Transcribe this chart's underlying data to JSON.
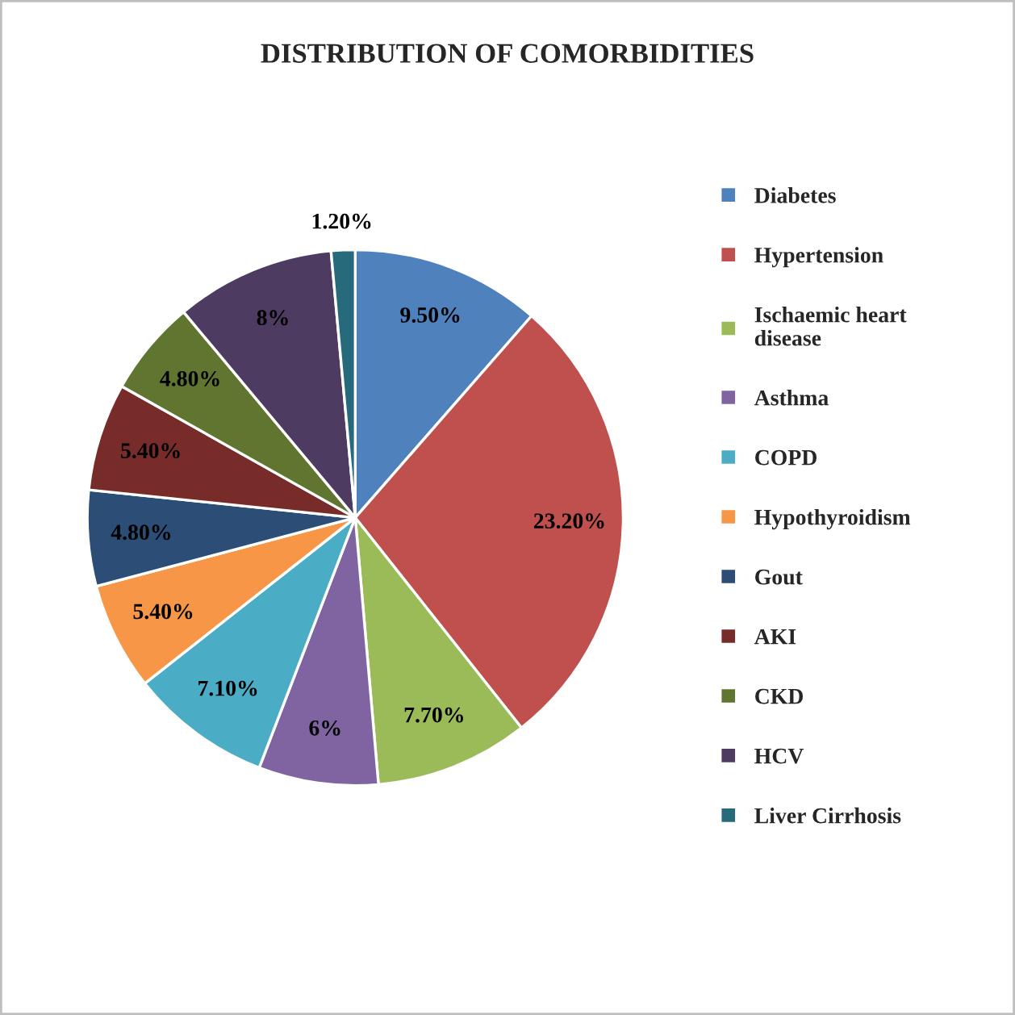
{
  "chart_data": {
    "type": "pie",
    "title": "DISTRIBUTION OF COMORBIDITIES",
    "categories": [
      "Diabetes",
      "Hypertension",
      "Ischaemic heart\ndisease",
      "Asthma",
      "COPD",
      "Hypothyroidism",
      "Gout",
      "AKI",
      "CKD",
      "HCV",
      "Liver Cirrhosis"
    ],
    "values": [
      9.5,
      23.2,
      7.7,
      6,
      7.1,
      5.4,
      4.8,
      5.4,
      4.8,
      8,
      1.2
    ],
    "value_labels": [
      "9.50%",
      "23.20%",
      "7.70%",
      "6%",
      "7.10%",
      "5.40%",
      "4.80%",
      "5.40%",
      "4.80%",
      "8%",
      "1.20%"
    ],
    "colors": [
      "#4f81bd",
      "#c0504d",
      "#9bbb59",
      "#8064a2",
      "#4bacc6",
      "#f79646",
      "#2c4d75",
      "#772c2a",
      "#5f7530",
      "#4d3b62",
      "#276a7c"
    ],
    "legend": "right"
  }
}
